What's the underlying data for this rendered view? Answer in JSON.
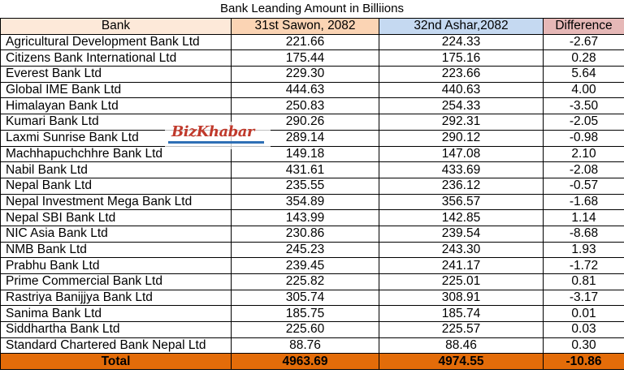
{
  "title": "Bank Leanding Amount in Billiions",
  "headers": {
    "bank": "Bank",
    "col1": "31st Sawon, 2082",
    "col2": "32nd Ashar,2082",
    "diff": "Difference"
  },
  "rows": [
    {
      "bank": "Agricultural Development Bank Ltd",
      "v1": "221.66",
      "v2": "224.33",
      "diff": "-2.67"
    },
    {
      "bank": "Citizens Bank International Ltd",
      "v1": "175.44",
      "v2": "175.16",
      "diff": "0.28"
    },
    {
      "bank": "Everest Bank Ltd",
      "v1": "229.30",
      "v2": "223.66",
      "diff": "5.64"
    },
    {
      "bank": "Global IME Bank Ltd",
      "v1": "444.63",
      "v2": "440.63",
      "diff": "4.00"
    },
    {
      "bank": "Himalayan Bank Ltd",
      "v1": "250.83",
      "v2": "254.33",
      "diff": "-3.50"
    },
    {
      "bank": "Kumari Bank Ltd",
      "v1": "290.26",
      "v2": "292.31",
      "diff": "-2.05"
    },
    {
      "bank": "Laxmi Sunrise Bank Ltd",
      "v1": "289.14",
      "v2": "290.12",
      "diff": "-0.98"
    },
    {
      "bank": "Machhapuchchhre Bank Ltd",
      "v1": "149.18",
      "v2": "147.08",
      "diff": "2.10"
    },
    {
      "bank": "Nabil Bank Ltd",
      "v1": "431.61",
      "v2": "433.69",
      "diff": "-2.08"
    },
    {
      "bank": "Nepal Bank Ltd",
      "v1": "235.55",
      "v2": "236.12",
      "diff": "-0.57"
    },
    {
      "bank": "Nepal Investment Mega Bank Ltd",
      "v1": "354.89",
      "v2": "356.57",
      "diff": "-1.68"
    },
    {
      "bank": "Nepal SBI Bank Ltd",
      "v1": "143.99",
      "v2": "142.85",
      "diff": "1.14"
    },
    {
      "bank": "NIC Asia Bank Ltd",
      "v1": "230.86",
      "v2": "239.54",
      "diff": "-8.68"
    },
    {
      "bank": "NMB Bank Ltd",
      "v1": "245.23",
      "v2": "243.30",
      "diff": "1.93"
    },
    {
      "bank": "Prabhu Bank Ltd",
      "v1": "239.45",
      "v2": "241.17",
      "diff": "-1.72"
    },
    {
      "bank": "Prime Commercial Bank Ltd",
      "v1": "225.82",
      "v2": "225.01",
      "diff": "0.81"
    },
    {
      "bank": "Rastriya Banijjya Bank Ltd",
      "v1": "305.74",
      "v2": "308.91",
      "diff": "-3.17"
    },
    {
      "bank": "Sanima Bank Ltd",
      "v1": "185.75",
      "v2": "185.74",
      "diff": "0.01"
    },
    {
      "bank": "Siddhartha Bank Ltd",
      "v1": "225.60",
      "v2": "225.57",
      "diff": "0.03"
    },
    {
      "bank": "Standard Chartered Bank Nepal Ltd",
      "v1": "88.76",
      "v2": "88.46",
      "diff": "0.30"
    }
  ],
  "total": {
    "label": "Total",
    "v1": "4963.69",
    "v2": "4974.55",
    "diff": "-10.86"
  },
  "watermark": "BizKhabar",
  "colors": {
    "header_bank": "#fde9d9",
    "header_col1": "#fbd4b4",
    "header_col2": "#c5d9f1",
    "header_diff": "#e6b8b7",
    "total_row": "#e36c09",
    "watermark": "#c0392b"
  }
}
